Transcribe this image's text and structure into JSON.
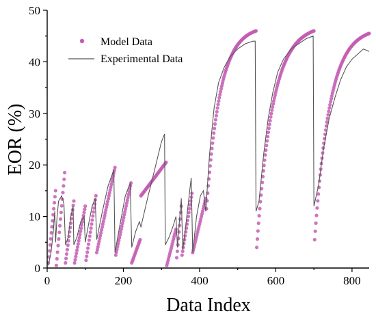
{
  "chart_data": {
    "type": "scatter",
    "xlabel": "Data Index",
    "ylabel": "EOR (%)",
    "xlim": [
      0,
      845
    ],
    "ylim": [
      0,
      50
    ],
    "xticks": [
      0,
      200,
      400,
      600,
      800
    ],
    "yticks": [
      0,
      10,
      20,
      30,
      40,
      50
    ],
    "legend_position": "top-left",
    "series": [
      {
        "name": "Model Data",
        "kind": "markers",
        "color": "#c45db4",
        "segments": [
          {
            "x0": 3,
            "x1": 22,
            "y0": 1.0,
            "y1": 15.0
          },
          {
            "x0": 24,
            "x1": 46,
            "y0": 0.5,
            "y1": 18.5
          },
          {
            "x0": 48,
            "x1": 70,
            "y0": 1.0,
            "y1": 13.0
          },
          {
            "x0": 72,
            "x1": 100,
            "y0": 1.0,
            "y1": 12.0
          },
          {
            "x0": 102,
            "x1": 128,
            "y0": 1.5,
            "y1": 14.0
          },
          {
            "x0": 130,
            "x1": 178,
            "y0": 3.0,
            "y1": 19.5
          },
          {
            "x0": 180,
            "x1": 220,
            "y0": 2.5,
            "y1": 16.5
          },
          {
            "x0": 222,
            "x1": 244,
            "y0": 1.0,
            "y1": 5.5
          },
          {
            "x0": 246,
            "x1": 312,
            "y0": 14.0,
            "y1": 20.5
          },
          {
            "x0": 314,
            "x1": 338,
            "y0": 0.5,
            "y1": 7.5
          },
          {
            "x0": 340,
            "x1": 352,
            "y0": 2.0,
            "y1": 12.0
          },
          {
            "x0": 354,
            "x1": 380,
            "y0": 2.5,
            "y1": 14.5
          },
          {
            "x0": 382,
            "x1": 416,
            "y0": 3.0,
            "y1": 13.5
          },
          {
            "x0": 418,
            "x1": 548,
            "y0": 11.5,
            "y1": 46.0,
            "curve": "exp"
          },
          {
            "x0": 550,
            "x1": 700,
            "y0": 4.0,
            "y1": 46.0,
            "curve": "exp"
          },
          {
            "x0": 702,
            "x1": 845,
            "y0": 5.5,
            "y1": 45.5,
            "curve": "exp"
          }
        ]
      },
      {
        "name": "Experimental Data",
        "kind": "line",
        "color": "#555555",
        "points": [
          [
            3,
            0.5
          ],
          [
            10,
            3
          ],
          [
            16,
            7
          ],
          [
            20,
            11
          ],
          [
            22,
            5
          ],
          [
            26,
            10
          ],
          [
            30,
            13
          ],
          [
            38,
            14
          ],
          [
            44,
            12.5
          ],
          [
            48,
            4.5
          ],
          [
            55,
            6
          ],
          [
            62,
            10
          ],
          [
            68,
            12
          ],
          [
            70,
            4.5
          ],
          [
            78,
            6
          ],
          [
            88,
            9
          ],
          [
            97,
            10
          ],
          [
            100,
            5
          ],
          [
            110,
            9
          ],
          [
            118,
            12
          ],
          [
            126,
            13.5
          ],
          [
            130,
            5.5
          ],
          [
            145,
            11
          ],
          [
            160,
            16
          ],
          [
            175,
            19
          ],
          [
            178,
            3
          ],
          [
            190,
            8
          ],
          [
            205,
            14
          ],
          [
            218,
            16.5
          ],
          [
            222,
            4
          ],
          [
            232,
            7
          ],
          [
            242,
            9
          ],
          [
            246,
            8
          ],
          [
            265,
            14
          ],
          [
            285,
            20
          ],
          [
            300,
            24.5
          ],
          [
            308,
            26
          ],
          [
            310,
            4.5
          ],
          [
            320,
            6
          ],
          [
            330,
            8
          ],
          [
            338,
            10
          ],
          [
            342,
            4
          ],
          [
            348,
            10
          ],
          [
            352,
            13.5
          ],
          [
            356,
            3.5
          ],
          [
            365,
            9
          ],
          [
            374,
            15
          ],
          [
            378,
            17.5
          ],
          [
            382,
            3
          ],
          [
            392,
            10
          ],
          [
            402,
            14
          ],
          [
            410,
            15
          ],
          [
            416,
            11
          ],
          [
            426,
            22
          ],
          [
            438,
            31
          ],
          [
            450,
            36
          ],
          [
            465,
            39
          ],
          [
            480,
            41
          ],
          [
            500,
            42.5
          ],
          [
            520,
            43.5
          ],
          [
            540,
            44
          ],
          [
            546,
            44
          ],
          [
            548,
            11
          ],
          [
            556,
            13
          ],
          [
            568,
            22
          ],
          [
            580,
            29
          ],
          [
            592,
            34
          ],
          [
            605,
            38
          ],
          [
            620,
            40.5
          ],
          [
            640,
            42.5
          ],
          [
            660,
            43.5
          ],
          [
            680,
            44.5
          ],
          [
            698,
            45
          ],
          [
            700,
            12
          ],
          [
            712,
            16
          ],
          [
            725,
            23
          ],
          [
            740,
            29
          ],
          [
            755,
            33
          ],
          [
            770,
            36.5
          ],
          [
            785,
            39
          ],
          [
            800,
            40.5
          ],
          [
            815,
            41.5
          ],
          [
            830,
            42.5
          ],
          [
            845,
            42
          ]
        ]
      }
    ]
  }
}
